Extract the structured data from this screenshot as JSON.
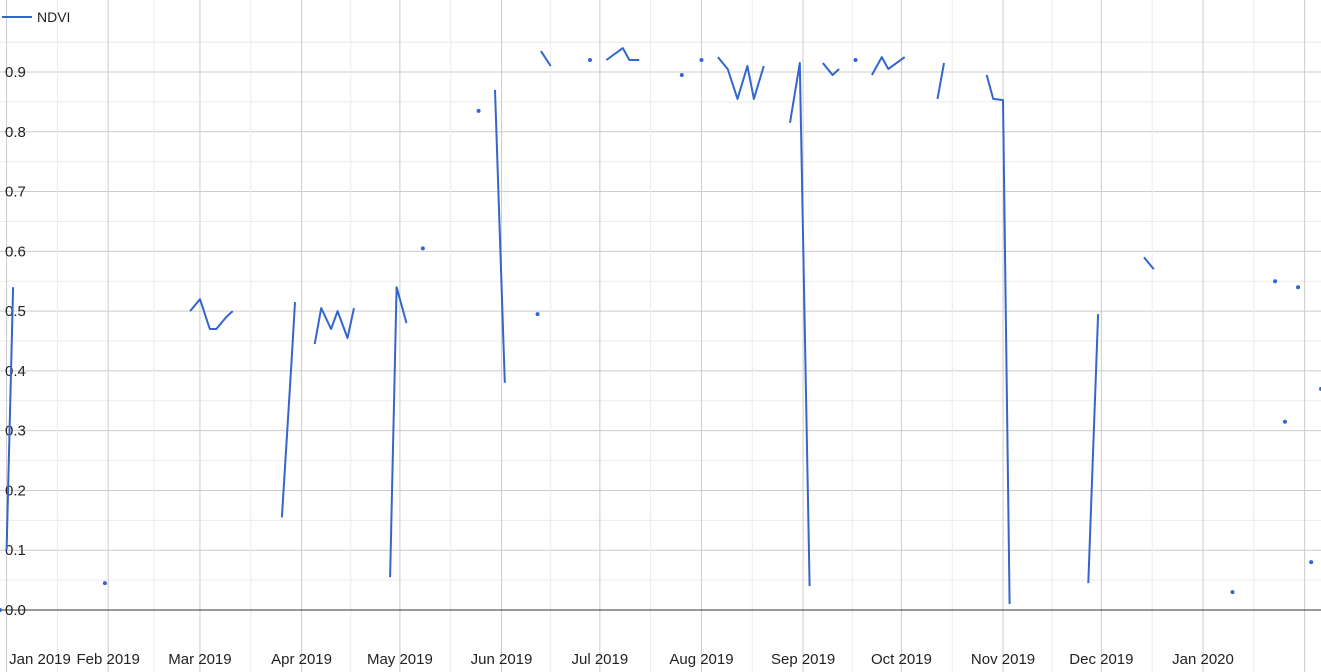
{
  "chart_data": {
    "type": "line",
    "series": [
      {
        "name": "NDVI",
        "color": "#3366cc",
        "segments": [
          [
            [
              "2018-12-30",
              0.0
            ]
          ],
          [
            [
              "2019-01-01",
              0.1
            ],
            [
              "2019-01-03",
              0.54
            ]
          ],
          [
            [
              "2019-01-31",
              0.045
            ]
          ],
          [
            [
              "2019-02-26",
              0.5
            ],
            [
              "2019-03-01",
              0.52
            ],
            [
              "2019-03-04",
              0.47
            ],
            [
              "2019-03-06",
              0.47
            ],
            [
              "2019-03-09",
              0.49
            ],
            [
              "2019-03-11",
              0.5
            ]
          ],
          [
            [
              "2019-03-26",
              0.155
            ],
            [
              "2019-03-29",
              0.42
            ],
            [
              "2019-03-30",
              0.515
            ]
          ],
          [
            [
              "2019-04-05",
              0.445
            ],
            [
              "2019-04-07",
              0.505
            ],
            [
              "2019-04-10",
              0.47
            ],
            [
              "2019-04-12",
              0.5
            ],
            [
              "2019-04-15",
              0.455
            ],
            [
              "2019-04-17",
              0.505
            ]
          ],
          [
            [
              "2019-04-28",
              0.055
            ],
            [
              "2019-04-30",
              0.54
            ],
            [
              "2019-05-03",
              0.48
            ]
          ],
          [
            [
              "2019-05-08",
              0.605
            ]
          ],
          [
            [
              "2019-05-25",
              0.835
            ]
          ],
          [
            [
              "2019-05-30",
              0.87
            ],
            [
              "2019-06-02",
              0.38
            ]
          ],
          [
            [
              "2019-06-12",
              0.495
            ]
          ],
          [
            [
              "2019-06-13",
              0.935
            ],
            [
              "2019-06-16",
              0.91
            ]
          ],
          [
            [
              "2019-06-28",
              0.92
            ]
          ],
          [
            [
              "2019-07-03",
              0.92
            ],
            [
              "2019-07-08",
              0.94
            ],
            [
              "2019-07-10",
              0.92
            ],
            [
              "2019-07-13",
              0.92
            ]
          ],
          [
            [
              "2019-07-26",
              0.895
            ]
          ],
          [
            [
              "2019-08-01",
              0.92
            ]
          ],
          [
            [
              "2019-08-06",
              0.925
            ],
            [
              "2019-08-09",
              0.905
            ],
            [
              "2019-08-12",
              0.855
            ],
            [
              "2019-08-15",
              0.91
            ],
            [
              "2019-08-17",
              0.855
            ],
            [
              "2019-08-20",
              0.91
            ]
          ],
          [
            [
              "2019-08-28",
              0.815
            ],
            [
              "2019-08-31",
              0.915
            ],
            [
              "2019-09-03",
              0.04
            ]
          ],
          [
            [
              "2019-09-07",
              0.915
            ],
            [
              "2019-09-10",
              0.895
            ],
            [
              "2019-09-12",
              0.905
            ]
          ],
          [
            [
              "2019-09-17",
              0.92
            ]
          ],
          [
            [
              "2019-09-22",
              0.895
            ],
            [
              "2019-09-25",
              0.925
            ],
            [
              "2019-09-27",
              0.905
            ],
            [
              "2019-10-02",
              0.925
            ]
          ],
          [
            [
              "2019-10-12",
              0.855
            ],
            [
              "2019-10-14",
              0.915
            ]
          ],
          [
            [
              "2019-10-27",
              0.895
            ],
            [
              "2019-10-29",
              0.855
            ],
            [
              "2019-11-01",
              0.853
            ],
            [
              "2019-11-03",
              0.01
            ]
          ],
          [
            [
              "2019-11-27",
              0.045
            ],
            [
              "2019-11-30",
              0.495
            ]
          ],
          [
            [
              "2019-12-14",
              0.59
            ],
            [
              "2019-12-17",
              0.57
            ]
          ],
          [
            [
              "2020-01-10",
              0.03
            ]
          ],
          [
            [
              "2020-01-23",
              0.55
            ]
          ],
          [
            [
              "2020-01-26",
              0.315
            ]
          ],
          [
            [
              "2020-01-30",
              0.54
            ]
          ],
          [
            [
              "2020-02-03",
              0.08
            ]
          ],
          [
            [
              "2020-02-06",
              0.37
            ]
          ]
        ]
      }
    ],
    "xlim": [
      "2018-12-30",
      "2020-02-06"
    ],
    "ylim": [
      0,
      1.0
    ],
    "x_ticks": [
      {
        "date": "2019-01-01",
        "label": "Jan 2019"
      },
      {
        "date": "2019-02-01",
        "label": "Feb 2019"
      },
      {
        "date": "2019-03-01",
        "label": "Mar 2019"
      },
      {
        "date": "2019-04-01",
        "label": "Apr 2019"
      },
      {
        "date": "2019-05-01",
        "label": "May 2019"
      },
      {
        "date": "2019-06-01",
        "label": "Jun 2019"
      },
      {
        "date": "2019-07-01",
        "label": "Jul 2019"
      },
      {
        "date": "2019-08-01",
        "label": "Aug 2019"
      },
      {
        "date": "2019-09-01",
        "label": "Sep 2019"
      },
      {
        "date": "2019-10-01",
        "label": "Oct 2019"
      },
      {
        "date": "2019-11-01",
        "label": "Nov 2019"
      },
      {
        "date": "2019-12-01",
        "label": "Dec 2019"
      },
      {
        "date": "2020-01-01",
        "label": "Jan 2020"
      }
    ],
    "y_ticks": [
      {
        "value": 0.0,
        "label": "0.0"
      },
      {
        "value": 0.1,
        "label": "0.1"
      },
      {
        "value": 0.2,
        "label": "0.2"
      },
      {
        "value": 0.3,
        "label": "0.3"
      },
      {
        "value": 0.4,
        "label": "0.4"
      },
      {
        "value": 0.5,
        "label": "0.5"
      },
      {
        "value": 0.6,
        "label": "0.6"
      },
      {
        "value": 0.7,
        "label": "0.7"
      },
      {
        "value": 0.8,
        "label": "0.8"
      },
      {
        "value": 0.9,
        "label": "0.9"
      }
    ],
    "grid": true,
    "legend": {
      "position": "top-left",
      "entries": [
        "NDVI"
      ]
    },
    "colors": {
      "line": "#3366cc",
      "grid_major": "#cccccc",
      "grid_minor": "#ebebeb",
      "baseline": "#333333"
    }
  }
}
